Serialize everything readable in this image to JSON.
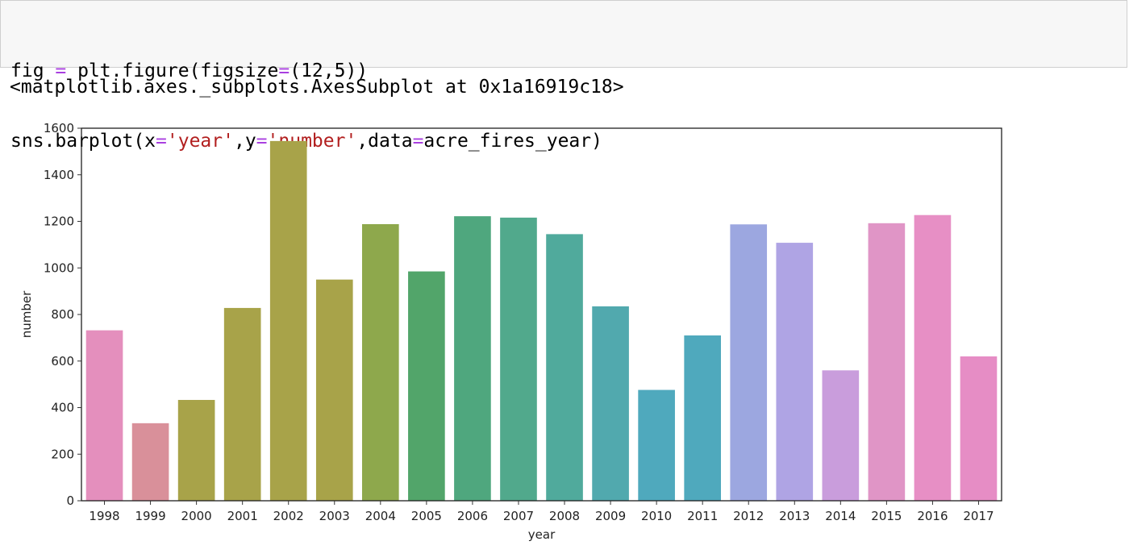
{
  "code": {
    "line1_prefix": "fig ",
    "line1_op1": "=",
    "line1_middle": " plt.figure(figsize",
    "line1_op2": "=",
    "line1_suffix": "(12,5))",
    "line2_a": "sns.barplot(x",
    "line2_op1": "=",
    "line2_str1": "'year'",
    "line2_b": ",y",
    "line2_op2": "=",
    "line2_str2": "'number'",
    "line2_c": ",data",
    "line2_op3": "=",
    "line2_d": "acre_fires_year)"
  },
  "output": {
    "text": "<matplotlib.axes._subplots.AxesSubplot at 0x1a16919c18>"
  },
  "chart_data": {
    "type": "bar",
    "xlabel": "year",
    "ylabel": "number",
    "categories": [
      "1998",
      "1999",
      "2000",
      "2001",
      "2002",
      "2003",
      "2004",
      "2005",
      "2006",
      "2007",
      "2008",
      "2009",
      "2010",
      "2011",
      "2012",
      "2013",
      "2014",
      "2015",
      "2016",
      "2017"
    ],
    "values": [
      732,
      333,
      433,
      828,
      1545,
      950,
      1188,
      985,
      1222,
      1216,
      1145,
      835,
      476,
      710,
      1187,
      1108,
      560,
      1192,
      1227,
      620
    ],
    "colors": [
      "#e48fbd",
      "#d9909a",
      "#a8a349",
      "#a8a349",
      "#a8a349",
      "#a8a349",
      "#8ea84c",
      "#52a56a",
      "#4fa77e",
      "#51a98c",
      "#50aa9c",
      "#51a9ae",
      "#4fa9bd",
      "#4fa9bd",
      "#9ca7e0",
      "#afa4e4",
      "#c99ddc",
      "#e095c6",
      "#e78fc5",
      "#e68dc5"
    ],
    "ylim": [
      0,
      1600
    ],
    "yticks": [
      0,
      200,
      400,
      600,
      800,
      1000,
      1200,
      1400,
      1600
    ]
  }
}
